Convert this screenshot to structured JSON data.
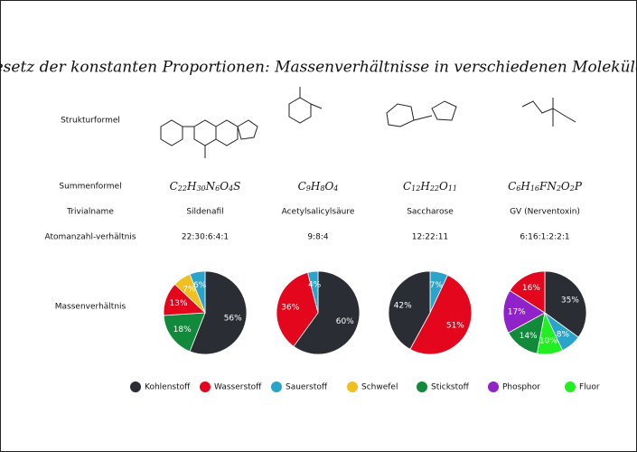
{
  "title": "Gesetz der konstanten Proportionen: Massenverhältnisse in verschiedenen Molekülen",
  "row_labels": [
    "Strukturformel",
    "Summenformel",
    "Trivialname",
    "Atomanzahl-verhältnis",
    "Massenverhältnis"
  ],
  "molecules": [
    {
      "formula": "C22H30N6O4S",
      "name": "Sildenafil",
      "ratio": "22:30:6:4:1"
    },
    {
      "formula": "C9H8O4",
      "name": "Acetylsalicylsäure",
      "ratio": "9:8:4"
    },
    {
      "formula": "C12H22O11",
      "name": "Saccharose",
      "ratio": "12:22:11"
    },
    {
      "formula": "C6H16FN2O2P",
      "name": "GV (Nerventoxin)",
      "ratio": "6:16:1:2:2:1"
    }
  ],
  "legend": [
    {
      "name": "Kohlenstoff",
      "color": "#2a2e34"
    },
    {
      "name": "Wasserstoff",
      "color": "#e3061c"
    },
    {
      "name": "Sauerstoff",
      "color": "#2aa4cb"
    },
    {
      "name": "Schwefel",
      "color": "#f2c01e"
    },
    {
      "name": "Stickstoff",
      "color": "#128a3c"
    },
    {
      "name": "Phosphor",
      "color": "#8f22c8"
    },
    {
      "name": "Fluor",
      "color": "#22ee22"
    }
  ],
  "chart_data": [
    {
      "type": "pie",
      "values": [
        56,
        18,
        13,
        7,
        6
      ],
      "value_labels": [
        "56%",
        "18%",
        "13%",
        "7%",
        "6%"
      ],
      "colors": [
        "#2a2e34",
        "#128a3c",
        "#e3061c",
        "#f2c01e",
        "#2aa4cb"
      ]
    },
    {
      "type": "pie",
      "values": [
        60,
        36,
        4
      ],
      "value_labels": [
        "60%",
        "36%",
        "4%"
      ],
      "colors": [
        "#2a2e34",
        "#e3061c",
        "#2aa4cb"
      ]
    },
    {
      "type": "pie",
      "values": [
        7,
        51,
        42
      ],
      "value_labels": [
        "7%",
        "51%",
        "42%"
      ],
      "colors": [
        "#2aa4cb",
        "#e3061c",
        "#2a2e34"
      ]
    },
    {
      "type": "pie",
      "values": [
        35,
        8,
        10,
        14,
        17,
        16
      ],
      "value_labels": [
        "35%",
        "8%",
        "10%",
        "14%",
        "17%",
        "16%"
      ],
      "colors": [
        "#2a2e34",
        "#2aa4cb",
        "#22ee22",
        "#128a3c",
        "#8f22c8",
        "#e3061c"
      ]
    }
  ]
}
